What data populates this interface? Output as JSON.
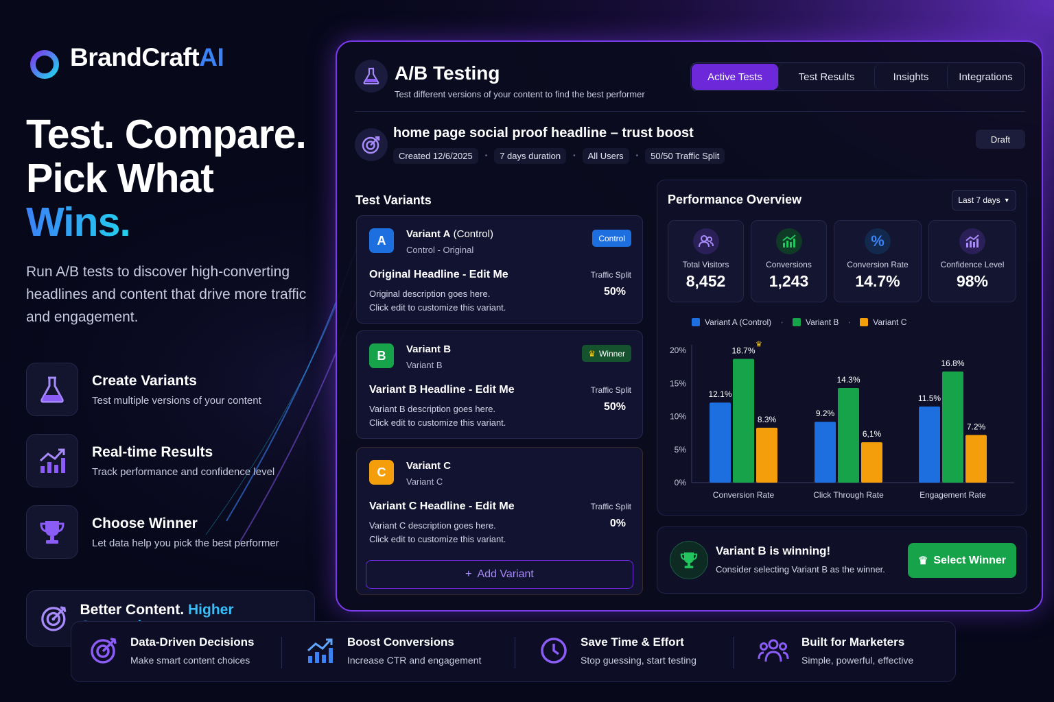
{
  "brand": {
    "name_main": "BrandCraft",
    "name_accent": "AI"
  },
  "hero": {
    "line1": "Test. Compare.",
    "line2_a": "Pick What ",
    "line2_b": "Wins."
  },
  "lead": "Run A/B tests to discover high-converting headlines and content that drive more traffic and engagement.",
  "features": [
    {
      "icon": "flask-icon",
      "title": "Create Variants",
      "subtitle": "Test multiple versions of your content"
    },
    {
      "icon": "growth-chart-icon",
      "title": "Real-time Results",
      "subtitle": "Track performance and confidence level"
    },
    {
      "icon": "trophy-icon",
      "title": "Choose Winner",
      "subtitle": "Let data help you pick the best performer"
    }
  ],
  "tagline": {
    "a": "Better Content. ",
    "b": "Higher Conversions."
  },
  "panel": {
    "title": "A/B Testing",
    "subtitle": "Test different versions of your content to find the best performer",
    "tabs": [
      "Active Tests",
      "Test Results",
      "Insights",
      "Integrations"
    ],
    "active_tab": "Active Tests"
  },
  "test": {
    "name": "home page social proof headline – trust boost",
    "created": "Created 12/6/2025",
    "duration": "7 days duration",
    "audience": "All Users",
    "split": "50/50 Traffic Split",
    "status": "Draft"
  },
  "variants_title": "Test Variants",
  "variants": [
    {
      "letter": "A",
      "name": "Variant A",
      "name_suffix": " (Control)",
      "sub": "Control - Original",
      "tag": "Control",
      "headline": "Original Headline - Edit Me",
      "desc1": "Original description goes here.",
      "desc2": "Click edit to customize this variant.",
      "traffic_label": "Traffic Split",
      "traffic": "50%",
      "color": "#1d6fe0"
    },
    {
      "letter": "B",
      "name": "Variant B",
      "name_suffix": "",
      "sub": "Variant B",
      "tag": "Winner",
      "headline": "Variant B Headline - Edit Me",
      "desc1": "Variant B description goes here.",
      "desc2": "Click edit to customize this variant.",
      "traffic_label": "Traffic Split",
      "traffic": "50%",
      "color": "#16a34a"
    },
    {
      "letter": "C",
      "name": "Variant C",
      "name_suffix": "",
      "sub": "Variant C",
      "tag": "",
      "headline": "Variant C Headline - Edit Me",
      "desc1": "Variant C description goes here.",
      "desc2": "Click edit to customize this variant.",
      "traffic_label": "Traffic Split",
      "traffic": "0%",
      "color": "#f59e0b"
    }
  ],
  "add_variant": "Add Variant",
  "performance": {
    "title": "Performance Overview",
    "range": "Last 7 days",
    "stats": [
      {
        "icon": "users-icon",
        "label": "Total Visitors",
        "value": "8,452",
        "color": "#8b5cf6"
      },
      {
        "icon": "bar-chart-icon",
        "label": "Conversions",
        "value": "1,243",
        "color": "#22c55e"
      },
      {
        "icon": "percent-icon",
        "label": "Conversion Rate",
        "value": "14.7%",
        "color": "#3b82f6"
      },
      {
        "icon": "confidence-chart-icon",
        "label": "Confidence Level",
        "value": "98%",
        "color": "#8b5cf6"
      }
    ]
  },
  "chart_data": {
    "type": "bar",
    "categories": [
      "Conversion Rate",
      "Click Through Rate",
      "Engagement Rate"
    ],
    "series": [
      {
        "name": "Variant A (Control)",
        "values": [
          12.1,
          9.2,
          11.5
        ],
        "labels": [
          "12.1%",
          "9.2%",
          "11.5%"
        ],
        "color": "#1d6fe0"
      },
      {
        "name": "Variant B",
        "values": [
          18.7,
          14.3,
          16.8
        ],
        "labels": [
          "18.7%",
          "14.3%",
          "16.8%"
        ],
        "color": "#16a34a"
      },
      {
        "name": "Variant C",
        "values": [
          8.3,
          6.1,
          7.2
        ],
        "labels": [
          "8.3%",
          "6,1%",
          "7.2%"
        ],
        "color": "#f59e0b"
      }
    ],
    "yticks": [
      "0%",
      "5%",
      "10%",
      "15%",
      "20%"
    ],
    "ylim": [
      0,
      20
    ],
    "grid": false,
    "legend": "top"
  },
  "winner": {
    "title": "Variant B is winning!",
    "subtitle": "Consider selecting Variant B as the winner.",
    "button": "Select Winner"
  },
  "benefits": [
    {
      "icon": "target-icon",
      "title": "Data-Driven Decisions",
      "subtitle": "Make smart content choices"
    },
    {
      "icon": "growth-chart-icon",
      "title": "Boost Conversions",
      "subtitle": "Increase CTR and engagement"
    },
    {
      "icon": "clock-icon",
      "title": "Save Time & Effort",
      "subtitle": "Stop guessing, start testing"
    },
    {
      "icon": "team-icon",
      "title": "Built for Marketers",
      "subtitle": "Simple, powerful, effective"
    }
  ]
}
